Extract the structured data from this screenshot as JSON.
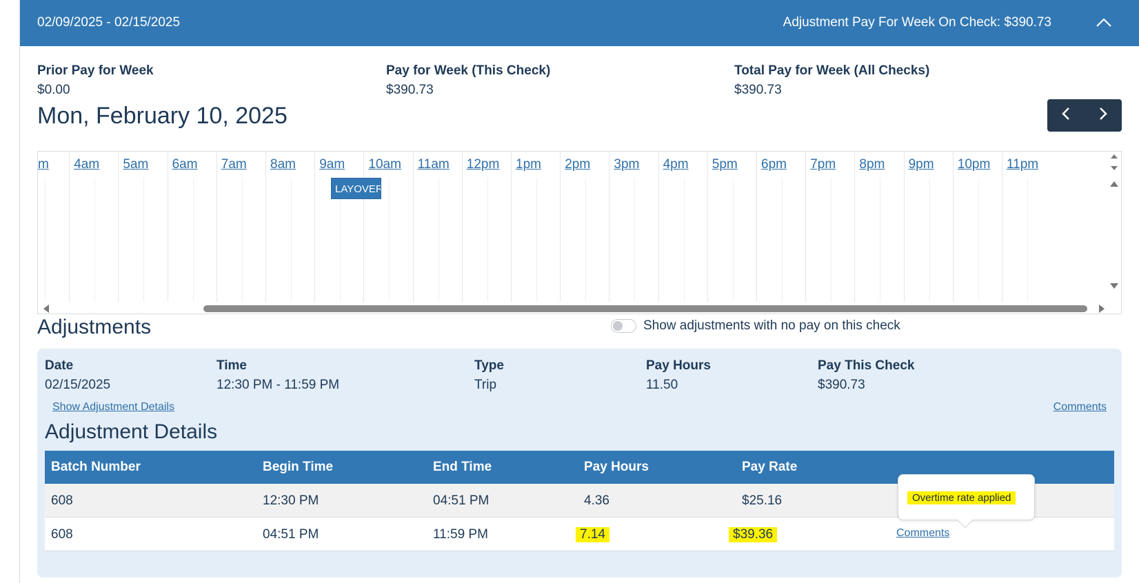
{
  "header": {
    "date_range": "02/09/2025 - 02/15/2025",
    "adjustment_pay": "Adjustment Pay For Week On Check: $390.73",
    "collapse_icon": "chevron-up-icon"
  },
  "summary": {
    "prior_label": "Prior Pay for Week",
    "prior_value": "$0.00",
    "this_check_label": "Pay for Week (This Check)",
    "this_check_value": "$390.73",
    "total_label": "Total Pay for Week (All Checks)",
    "total_value": "$390.73"
  },
  "day": {
    "title": "Mon, February 10, 2025",
    "prev_icon": "chevron-left-icon",
    "next_icon": "chevron-right-icon"
  },
  "timeline": {
    "hours": [
      "m",
      "4am",
      "5am",
      "6am",
      "7am",
      "8am",
      "9am",
      "10am",
      "11am",
      "12pm",
      "1pm",
      "2pm",
      "3pm",
      "4pm",
      "5pm",
      "6pm",
      "7pm",
      "8pm",
      "9pm",
      "10pm",
      "11pm"
    ],
    "event_label": "LAYOVER"
  },
  "adjustments": {
    "title": "Adjustments",
    "toggle_label": "Show adjustments with no pay on this check",
    "toggle_on": false,
    "labels": {
      "date": "Date",
      "time": "Time",
      "type": "Type",
      "pay_hours": "Pay Hours",
      "pay_this_check": "Pay This Check"
    },
    "entry": {
      "date": "02/15/2025",
      "time": "12:30 PM - 11:59 PM",
      "type": "Trip",
      "pay_hours": "11.50",
      "pay_this_check": "$390.73"
    },
    "show_details_link": "Show Adjustment Details",
    "comments_link": "Comments"
  },
  "details": {
    "title": "Adjustment Details",
    "columns": [
      "Batch Number",
      "Begin Time",
      "End Time",
      "Pay Hours",
      "Pay Rate"
    ],
    "rows": [
      {
        "batch": "608",
        "begin": "12:30 PM",
        "end": "04:51 PM",
        "hours": "4.36",
        "rate": "$25.16",
        "comments": ""
      },
      {
        "batch": "608",
        "begin": "04:51 PM",
        "end": "11:59 PM",
        "hours": "7.14",
        "rate": "$39.36",
        "comments": "Comments"
      }
    ],
    "tooltip": "Overtime rate applied",
    "highlight_color": "#fff200"
  },
  "colors": {
    "header_blue": "#3278b4",
    "nav_dark": "#26394d",
    "card_bg": "#e4eef8"
  }
}
